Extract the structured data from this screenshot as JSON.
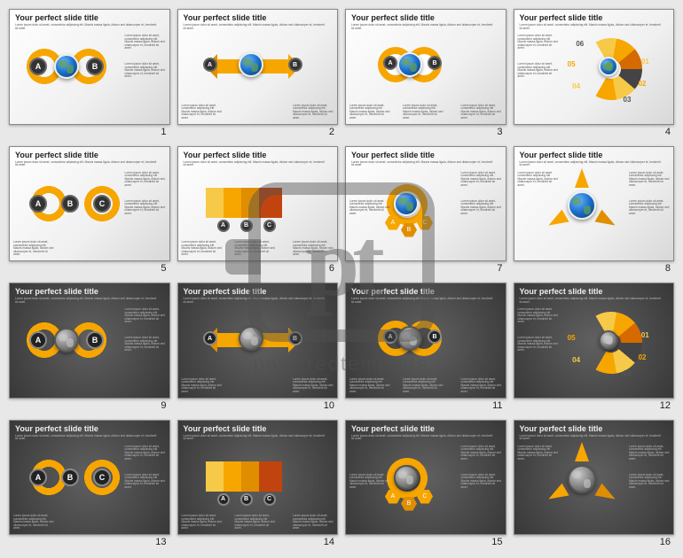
{
  "watermark": {
    "logo_text": "pt",
    "caption": "poweredtemplate"
  },
  "common": {
    "slide_title": "Your perfect slide title",
    "lorem": "Lorem ipsum dolor sit amet, consectetur adipiscing elit. Mauris massa ligula, dictum sed ullamcorper et, hendrerit sit amet.",
    "lorem_short": "Lorem ipsum dolor",
    "letters": {
      "a": "A",
      "b": "B",
      "c": "C"
    }
  },
  "colors": {
    "accent_yellow": "#f7c948",
    "accent_orange": "#f7a600",
    "accent_dark_orange": "#e08e00",
    "accent_red": "#c1440e",
    "neutral_dark": "#333333",
    "light_bg_start": "#ffffff",
    "light_bg_end": "#d8d8d8",
    "dark_bg_start": "#606060",
    "dark_bg_end": "#383838"
  },
  "person_colors_light": [
    "#f7c948",
    "#f7a600",
    "#e08e00",
    "#c1440e"
  ],
  "person_colors_dark": [
    "#f7c948",
    "#f7a600",
    "#e08e00",
    "#c1440e"
  ],
  "fan_numbers": [
    "01",
    "02",
    "03",
    "04",
    "05",
    "06"
  ],
  "slides": [
    {
      "n": "1",
      "theme": "light",
      "variant": "s_globe_ab"
    },
    {
      "n": "2",
      "theme": "light",
      "variant": "globe_arrows"
    },
    {
      "n": "3",
      "theme": "light",
      "variant": "two_globe"
    },
    {
      "n": "4",
      "theme": "light",
      "variant": "fan"
    },
    {
      "n": "5",
      "theme": "light",
      "variant": "s_abc"
    },
    {
      "n": "6",
      "theme": "light",
      "variant": "people"
    },
    {
      "n": "7",
      "theme": "light",
      "variant": "globe_hex"
    },
    {
      "n": "8",
      "theme": "light",
      "variant": "globe_burst"
    },
    {
      "n": "9",
      "theme": "dark",
      "variant": "s_globe_ab"
    },
    {
      "n": "10",
      "theme": "dark",
      "variant": "globe_arrows"
    },
    {
      "n": "11",
      "theme": "dark",
      "variant": "two_globe"
    },
    {
      "n": "12",
      "theme": "dark",
      "variant": "fan"
    },
    {
      "n": "13",
      "theme": "dark",
      "variant": "s_abc"
    },
    {
      "n": "14",
      "theme": "dark",
      "variant": "people"
    },
    {
      "n": "15",
      "theme": "dark",
      "variant": "globe_hex"
    },
    {
      "n": "16",
      "theme": "dark",
      "variant": "globe_burst"
    }
  ]
}
